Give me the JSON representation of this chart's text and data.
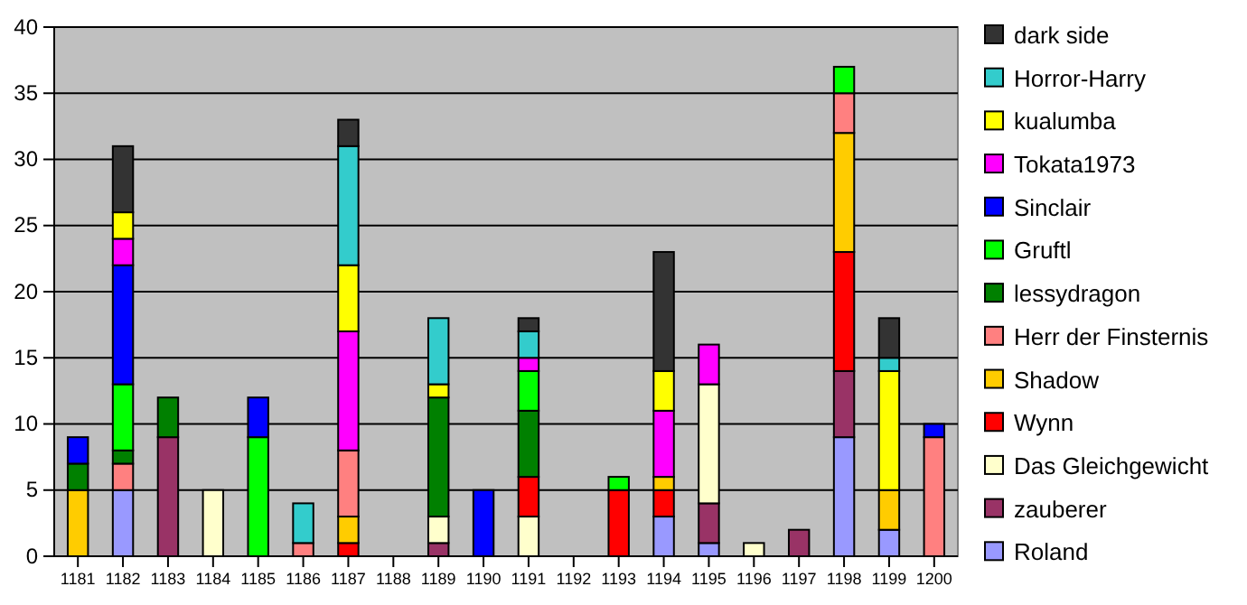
{
  "chart_data": {
    "type": "bar",
    "stacked": true,
    "categories": [
      "1181",
      "1182",
      "1183",
      "1184",
      "1185",
      "1186",
      "1187",
      "1188",
      "1189",
      "1190",
      "1191",
      "1192",
      "1193",
      "1194",
      "1195",
      "1196",
      "1197",
      "1198",
      "1199",
      "1200"
    ],
    "ylim": [
      0,
      40
    ],
    "yticks": [
      0,
      5,
      10,
      15,
      20,
      25,
      30,
      35,
      40
    ],
    "grid": "y",
    "legend": "right",
    "series": [
      {
        "name": "Roland",
        "color": "#9999ff",
        "values": [
          0,
          5,
          0,
          0,
          0,
          0,
          0,
          0,
          0,
          0,
          0,
          0,
          0,
          3,
          1,
          0,
          0,
          9,
          2,
          0
        ]
      },
      {
        "name": "zauberer",
        "color": "#993366",
        "values": [
          0,
          0,
          9,
          0,
          0,
          0,
          0,
          0,
          1,
          0,
          0,
          0,
          0,
          0,
          3,
          0,
          2,
          5,
          0,
          0
        ]
      },
      {
        "name": "Das Gleichgewicht",
        "color": "#ffffcc",
        "values": [
          0,
          0,
          0,
          5,
          0,
          0,
          0,
          0,
          2,
          0,
          3,
          0,
          0,
          0,
          9,
          1,
          0,
          0,
          0,
          0
        ]
      },
      {
        "name": "Wynn",
        "color": "#ff0000",
        "values": [
          0,
          0,
          0,
          0,
          0,
          0,
          1,
          0,
          0,
          0,
          3,
          0,
          5,
          2,
          0,
          0,
          0,
          9,
          0,
          0
        ]
      },
      {
        "name": "Shadow",
        "color": "#ffcc00",
        "values": [
          5,
          0,
          0,
          0,
          0,
          0,
          2,
          0,
          0,
          0,
          0,
          0,
          0,
          1,
          0,
          0,
          0,
          9,
          3,
          0
        ]
      },
      {
        "name": "Herr der Finsternis",
        "color": "#ff8080",
        "values": [
          0,
          2,
          0,
          0,
          0,
          1,
          5,
          0,
          0,
          0,
          0,
          0,
          0,
          0,
          0,
          0,
          0,
          3,
          0,
          9
        ]
      },
      {
        "name": "lessydragon",
        "color": "#008000",
        "values": [
          2,
          1,
          3,
          0,
          0,
          0,
          0,
          0,
          9,
          0,
          5,
          0,
          0,
          0,
          0,
          0,
          0,
          0,
          0,
          0
        ]
      },
      {
        "name": "Gruftl",
        "color": "#00ff00",
        "values": [
          0,
          5,
          0,
          0,
          9,
          0,
          0,
          0,
          0,
          0,
          3,
          0,
          1,
          0,
          0,
          0,
          0,
          2,
          0,
          0
        ]
      },
      {
        "name": "Sinclair",
        "color": "#0000ff",
        "values": [
          2,
          9,
          0,
          0,
          3,
          0,
          0,
          0,
          0,
          5,
          0,
          0,
          0,
          0,
          0,
          0,
          0,
          0,
          0,
          1
        ]
      },
      {
        "name": "Tokata1973",
        "color": "#ff00ff",
        "values": [
          0,
          2,
          0,
          0,
          0,
          0,
          9,
          0,
          0,
          0,
          1,
          0,
          0,
          5,
          3,
          0,
          0,
          0,
          0,
          0
        ]
      },
      {
        "name": "kualumba",
        "color": "#ffff00",
        "values": [
          0,
          2,
          0,
          0,
          0,
          0,
          5,
          0,
          1,
          0,
          0,
          0,
          0,
          3,
          0,
          0,
          0,
          0,
          9,
          0
        ]
      },
      {
        "name": "Horror-Harry",
        "color": "#33cccc",
        "values": [
          0,
          0,
          0,
          0,
          0,
          3,
          9,
          0,
          5,
          0,
          2,
          0,
          0,
          0,
          0,
          0,
          0,
          0,
          1,
          0
        ]
      },
      {
        "name": "dark side",
        "color": "#333333",
        "values": [
          0,
          5,
          0,
          0,
          0,
          0,
          2,
          0,
          0,
          0,
          1,
          0,
          0,
          9,
          0,
          0,
          0,
          0,
          3,
          0
        ]
      }
    ]
  }
}
